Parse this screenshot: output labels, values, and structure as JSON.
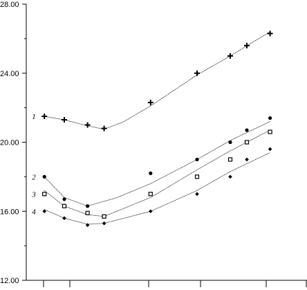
{
  "chart_data": {
    "type": "line",
    "title": "",
    "xlabel": "",
    "ylabel": "",
    "ylim": [
      12,
      28
    ],
    "y_ticks": [
      "12.00",
      "16.00",
      "20.00",
      "24.00",
      "28.00"
    ],
    "x_ticks": [
      0,
      1,
      2,
      3,
      4,
      5
    ],
    "x_tick_labels": [
      "",
      "",
      "",
      "",
      "",
      ""
    ],
    "grid": false,
    "legend": "none",
    "series": [
      {
        "name": "1",
        "marker": "plus",
        "points": [
          [
            0.4,
            21.5
          ],
          [
            1.0,
            21.3
          ],
          [
            1.7,
            21.0
          ],
          [
            2.2,
            20.8
          ],
          [
            3.6,
            22.3
          ],
          [
            5.0,
            24.0
          ],
          [
            6.0,
            25.0
          ],
          [
            6.5,
            25.6
          ],
          [
            7.2,
            26.3
          ]
        ],
        "fit": [
          [
            0.4,
            21.5
          ],
          [
            1.0,
            21.3
          ],
          [
            1.6,
            21.0
          ],
          [
            2.2,
            20.75
          ],
          [
            2.8,
            21.2
          ],
          [
            3.6,
            22.1
          ],
          [
            5.0,
            23.9
          ],
          [
            6.0,
            25.0
          ],
          [
            7.2,
            26.4
          ]
        ]
      },
      {
        "name": "2",
        "marker": "dot",
        "points": [
          [
            0.4,
            18.0
          ],
          [
            1.0,
            16.7
          ],
          [
            1.7,
            16.3
          ],
          [
            3.6,
            18.2
          ],
          [
            5.0,
            19.0
          ],
          [
            6.0,
            20.0
          ],
          [
            6.5,
            20.7
          ],
          [
            7.2,
            21.4
          ]
        ],
        "fit": [
          [
            0.4,
            18.0
          ],
          [
            1.0,
            16.8
          ],
          [
            1.7,
            16.3
          ],
          [
            2.6,
            16.8
          ],
          [
            3.6,
            17.6
          ],
          [
            5.0,
            19.0
          ],
          [
            6.0,
            20.1
          ],
          [
            7.2,
            21.2
          ]
        ]
      },
      {
        "name": "3",
        "marker": "square",
        "points": [
          [
            0.4,
            17.0
          ],
          [
            1.0,
            16.3
          ],
          [
            1.7,
            15.9
          ],
          [
            2.2,
            15.7
          ],
          [
            3.6,
            17.0
          ],
          [
            5.0,
            18.0
          ],
          [
            6.0,
            19.0
          ],
          [
            6.5,
            20.0
          ],
          [
            7.2,
            20.6
          ]
        ],
        "fit": [
          [
            0.4,
            17.2
          ],
          [
            1.0,
            16.3
          ],
          [
            1.7,
            15.8
          ],
          [
            2.2,
            15.7
          ],
          [
            3.6,
            16.8
          ],
          [
            5.0,
            18.4
          ],
          [
            6.0,
            19.5
          ],
          [
            7.2,
            20.7
          ]
        ]
      },
      {
        "name": "4",
        "marker": "diamond",
        "points": [
          [
            0.4,
            16.0
          ],
          [
            1.0,
            15.6
          ],
          [
            1.7,
            15.2
          ],
          [
            2.2,
            15.3
          ],
          [
            3.6,
            16.0
          ],
          [
            5.0,
            17.0
          ],
          [
            6.0,
            18.0
          ],
          [
            6.5,
            19.0
          ],
          [
            7.2,
            19.6
          ]
        ],
        "fit": [
          [
            0.4,
            16.1
          ],
          [
            1.0,
            15.6
          ],
          [
            1.7,
            15.25
          ],
          [
            2.2,
            15.3
          ],
          [
            3.6,
            16.0
          ],
          [
            5.0,
            17.2
          ],
          [
            6.0,
            18.3
          ],
          [
            7.2,
            19.4
          ]
        ]
      }
    ]
  }
}
